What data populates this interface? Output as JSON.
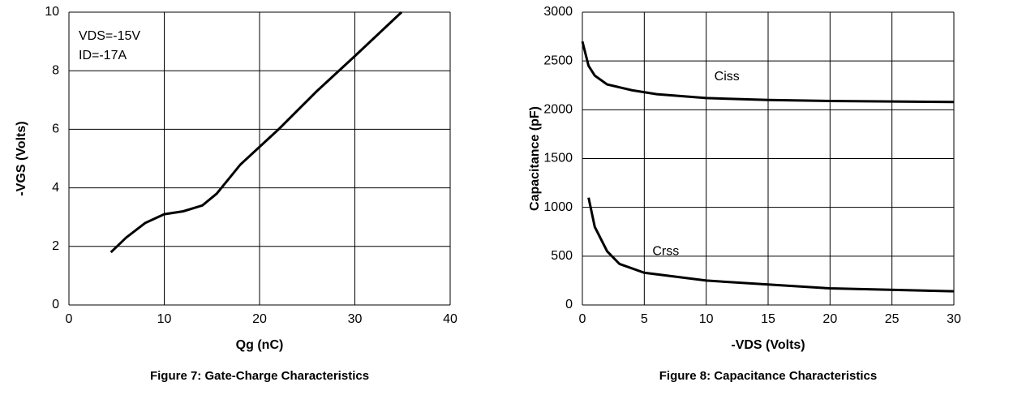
{
  "chart_data": [
    {
      "type": "line",
      "title": "Figure 7: Gate-Charge Characteristics",
      "x_label": "Qg (nC)",
      "y_label": "-VGS (Volts)",
      "annotations": [
        "VDS=-15V",
        "ID=-17A"
      ],
      "xlim": [
        0,
        40
      ],
      "xticks": [
        0,
        10,
        20,
        30,
        40
      ],
      "ylim": [
        0,
        10
      ],
      "yticks": [
        0,
        2,
        4,
        6,
        8,
        10
      ],
      "grid": true,
      "series": [
        {
          "name": "VGS",
          "color": "#000000",
          "x": [
            4.4,
            6,
            8,
            10,
            12,
            14,
            15.5,
            18,
            22,
            26,
            30,
            34.9
          ],
          "values": [
            1.8,
            2.3,
            2.8,
            3.1,
            3.2,
            3.4,
            3.8,
            4.8,
            6.0,
            7.3,
            8.5,
            10
          ]
        }
      ]
    },
    {
      "type": "line",
      "title": "Figure 8: Capacitance Characteristics",
      "x_label": "-VDS (Volts)",
      "y_label": "Capacitance (pF)",
      "xlim": [
        0,
        30
      ],
      "xticks": [
        0,
        5,
        10,
        15,
        20,
        25,
        30
      ],
      "ylim": [
        0,
        3000
      ],
      "yticks": [
        0,
        500,
        1000,
        1500,
        2000,
        2500,
        3000
      ],
      "grid": true,
      "series": [
        {
          "name": "Ciss",
          "color": "#000000",
          "x": [
            0,
            0.5,
            1,
            2,
            4,
            6,
            10,
            15,
            20,
            25,
            30
          ],
          "values": [
            2700,
            2450,
            2350,
            2260,
            2200,
            2160,
            2120,
            2100,
            2090,
            2085,
            2080
          ]
        },
        {
          "name": "Crss",
          "color": "#000000",
          "x": [
            0.5,
            1,
            2,
            3,
            5,
            10,
            20,
            30
          ],
          "values": [
            1100,
            800,
            550,
            420,
            330,
            250,
            170,
            140
          ]
        }
      ]
    }
  ]
}
